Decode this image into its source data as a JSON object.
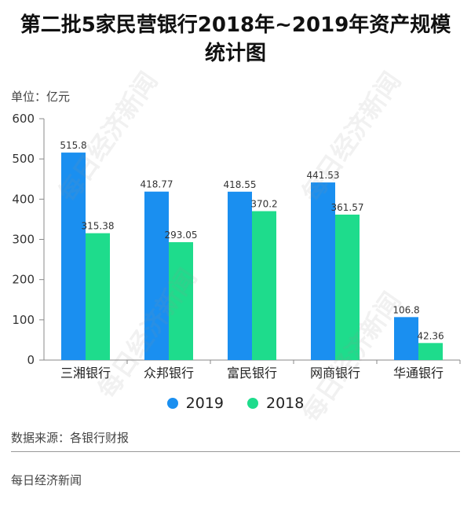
{
  "header": {
    "title_line1": "第二批5家民营银行2018年~2019年资产规模",
    "title_line2": "统计图",
    "unit": "单位：亿元"
  },
  "footer": {
    "source": "数据来源：各银行财报",
    "brand": "每日经济新闻"
  },
  "watermark": "每日经济新闻",
  "colors": {
    "2019": "#1a8ff0",
    "2018": "#1edc8c",
    "axis": "#888888",
    "grid": "#e6e6e6"
  },
  "chart_data": {
    "type": "bar",
    "title": "第二批5家民营银行2018年~2019年资产规模统计图",
    "ylabel": "单位：亿元",
    "categories": [
      "三湘银行",
      "众邦银行",
      "富民银行",
      "网商银行",
      "华通银行"
    ],
    "series": [
      {
        "name": "2019",
        "values": [
          515.8,
          418.77,
          418.55,
          441.53,
          106.8
        ],
        "labels": [
          "515.8",
          "418.77",
          "418.55",
          "441.53",
          "106.8"
        ]
      },
      {
        "name": "2018",
        "values": [
          315.38,
          293.05,
          370.2,
          361.57,
          42.36
        ],
        "labels": [
          "315.38",
          "293.05",
          "370.2",
          "361.57",
          "42.36"
        ]
      }
    ],
    "ylim": [
      0,
      600
    ],
    "yticks": [
      0,
      100,
      200,
      300,
      400,
      500,
      600
    ],
    "legend_position": "bottom",
    "grid": false
  }
}
